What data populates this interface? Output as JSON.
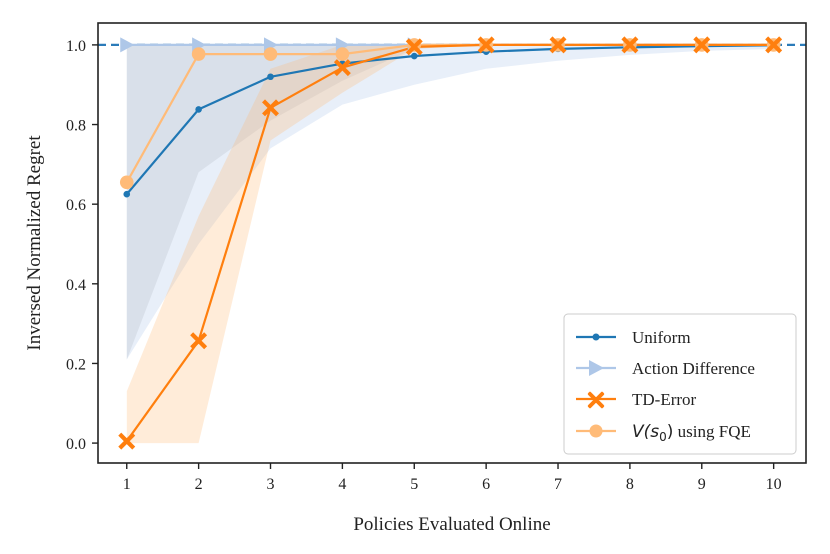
{
  "chart_data": {
    "type": "line",
    "xlabel": "Policies Evaluated Online",
    "ylabel": "Inversed Normalized Regret",
    "xlim": [
      0.6,
      10.45
    ],
    "ylim": [
      -0.05,
      1.055
    ],
    "xticks": [
      1,
      2,
      3,
      4,
      5,
      6,
      7,
      8,
      9,
      10
    ],
    "yticks": [
      0.0,
      0.2,
      0.4,
      0.6,
      0.8,
      1.0
    ],
    "ytick_labels": [
      "0.0",
      "0.2",
      "0.4",
      "0.6",
      "0.8",
      "1.0"
    ],
    "reference_line": {
      "y": 1.0,
      "style": "dashed",
      "color": "#2b7bb9"
    },
    "legend_position": "lower-right",
    "grid": false,
    "x": [
      1,
      2,
      3,
      4,
      5,
      6,
      7,
      8,
      9,
      10
    ],
    "series": [
      {
        "name": "Uniform",
        "color": "#1f77b4",
        "band_color": "#aec7e8",
        "marker": "circle-small",
        "values": [
          0.625,
          0.838,
          0.92,
          0.953,
          0.972,
          0.983,
          0.99,
          0.994,
          0.997,
          0.999
        ],
        "band_low": [
          0.21,
          0.5,
          0.74,
          0.85,
          0.9,
          0.94,
          0.96,
          0.975,
          0.985,
          0.99
        ],
        "band_high": [
          1.0,
          1.0,
          1.0,
          1.0,
          1.0,
          1.0,
          1.0,
          1.0,
          1.0,
          1.0
        ]
      },
      {
        "name": "Action Difference",
        "color": "#aec7e8",
        "band_color": "#c7c7c7",
        "marker": "triangle-right",
        "values": [
          1.0,
          1.0,
          1.0,
          1.0,
          1.0,
          1.0,
          1.0,
          1.0,
          1.0,
          1.0
        ],
        "band_low": [
          0.21,
          0.68,
          0.81,
          0.91,
          0.99,
          1.0,
          1.0,
          1.0,
          1.0,
          1.0
        ],
        "band_high": [
          1.0,
          1.0,
          1.0,
          1.0,
          1.0,
          1.0,
          1.0,
          1.0,
          1.0,
          1.0
        ]
      },
      {
        "name": "TD-Error",
        "color": "#ff7f0e",
        "band_color": "#ffbb78",
        "marker": "x-filled",
        "values": [
          0.005,
          0.257,
          0.842,
          0.943,
          0.995,
          1.0,
          1.0,
          1.0,
          1.0,
          1.0
        ],
        "band_low": [
          0.0,
          0.0,
          0.76,
          0.88,
          0.99,
          1.0,
          1.0,
          1.0,
          1.0,
          1.0
        ],
        "band_high": [
          0.13,
          0.57,
          0.94,
          1.0,
          1.0,
          1.0,
          1.0,
          1.0,
          1.0,
          1.0
        ]
      },
      {
        "name": "V(s0) using FQE",
        "name_math": "V(s",
        "name_sub": "0",
        "name_close": ")",
        "name_suffix": " using FQE",
        "color": "#ffbb78",
        "band_color": "#ffbb78",
        "marker": "circle-large",
        "values": [
          0.655,
          0.977,
          0.977,
          0.977,
          1.0,
          1.0,
          1.0,
          1.0,
          1.0,
          1.0
        ],
        "band_low": [
          0.655,
          0.977,
          0.977,
          0.977,
          1.0,
          1.0,
          1.0,
          1.0,
          1.0,
          1.0
        ],
        "band_high": [
          0.655,
          0.977,
          0.977,
          0.977,
          1.0,
          1.0,
          1.0,
          1.0,
          1.0,
          1.0
        ]
      }
    ]
  },
  "legend": {
    "uniform": "Uniform",
    "action_difference": "Action Difference",
    "td_error": "TD-Error",
    "fqe_math": "V(s",
    "fqe_sub": "0",
    "fqe_close": ")",
    "fqe_suffix": " using FQE"
  },
  "axes": {
    "xlabel": "Policies Evaluated Online",
    "ylabel": "Inversed Normalized Regret"
  }
}
